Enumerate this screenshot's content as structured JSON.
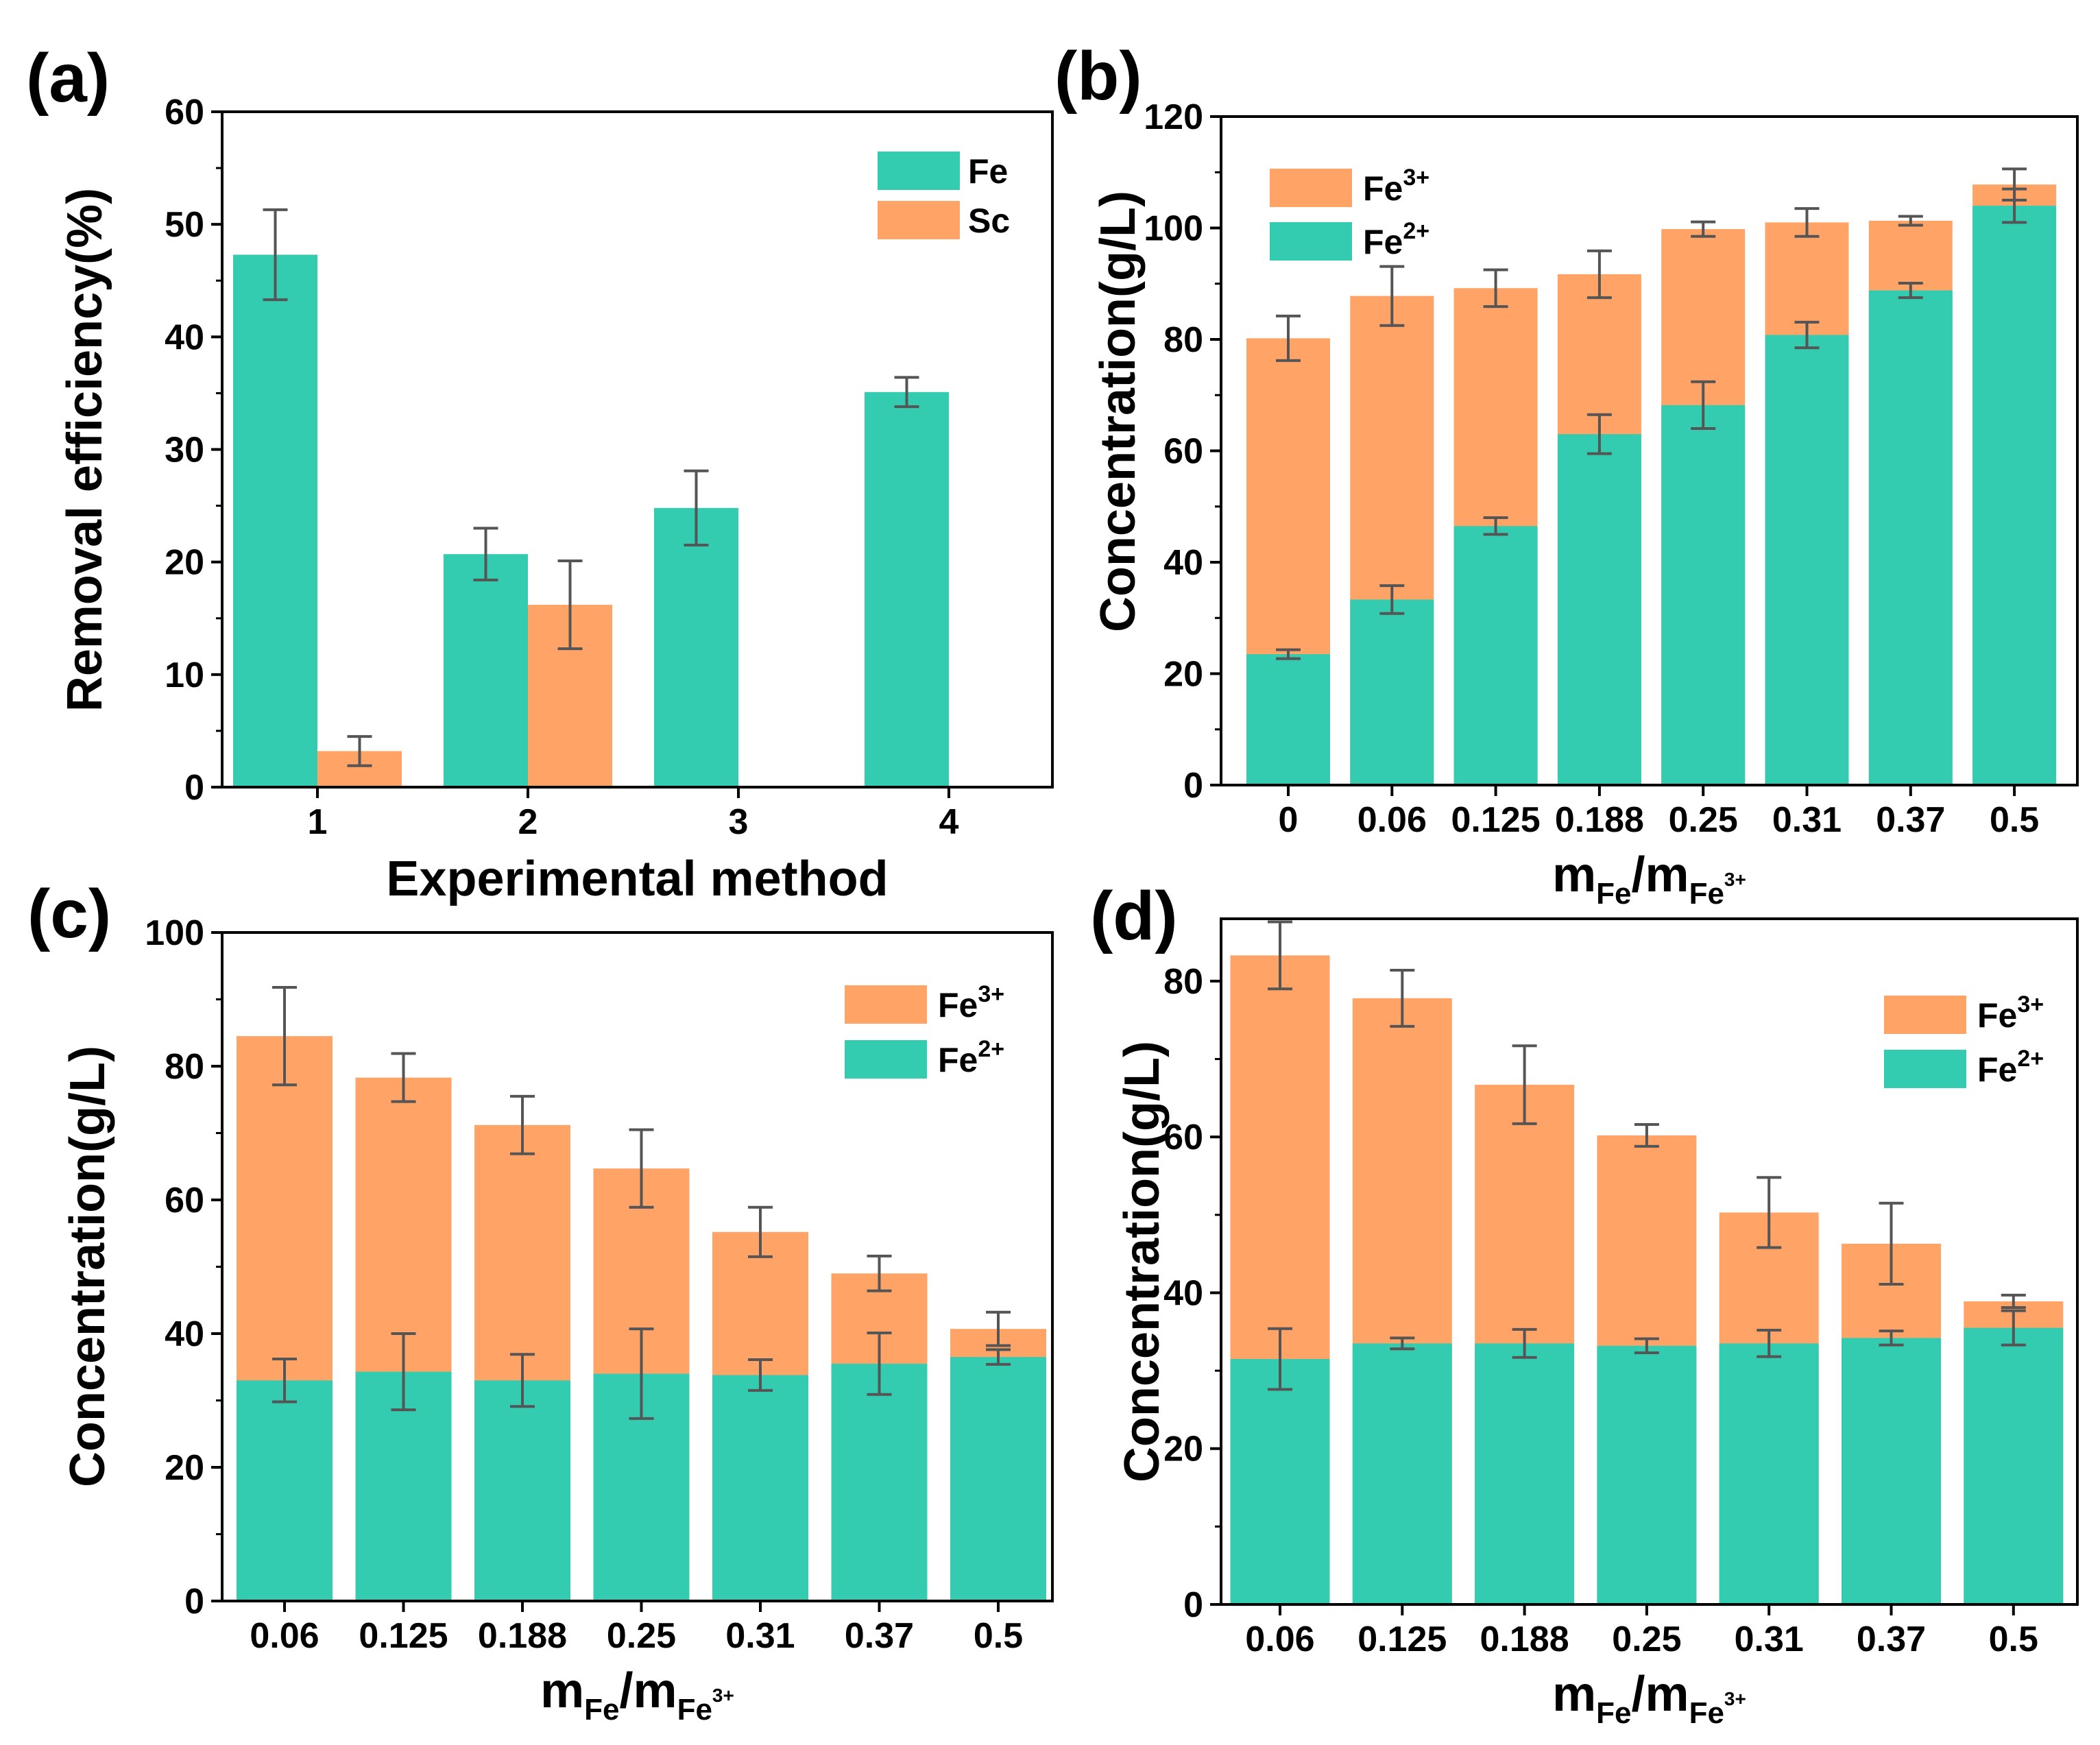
{
  "colors": {
    "fe2": "#33CCB0",
    "fe3": "#FFA366",
    "error": "#555555",
    "axis": "#000000"
  },
  "chart_data": [
    {
      "panel": "(a)",
      "type": "bar",
      "grouped": true,
      "categories": [
        "1",
        "2",
        "3",
        "4"
      ],
      "series": [
        {
          "name": "Fe",
          "values": [
            47.3,
            20.7,
            24.8,
            35.1
          ],
          "errors": [
            4.0,
            2.3,
            3.3,
            1.3
          ]
        },
        {
          "name": "Sc",
          "values": [
            3.2,
            16.2,
            null,
            null
          ],
          "errors": [
            1.3,
            3.9,
            null,
            null
          ]
        }
      ],
      "xlabel": "Experimental method",
      "ylabel": "Removal efficiency(%)",
      "ylim": [
        0,
        60
      ],
      "yticks": [
        0,
        10,
        20,
        30,
        40,
        50,
        60
      ],
      "legend": {
        "position": "top-right",
        "entries": [
          "Fe",
          "Sc"
        ]
      }
    },
    {
      "panel": "(b)",
      "type": "bar",
      "stacked": true,
      "categories": [
        "0",
        "0.06",
        "0.125",
        "0.188",
        "0.25",
        "0.31",
        "0.37",
        "0.5"
      ],
      "series": [
        {
          "name": "Fe2+",
          "values": [
            23.5,
            33.3,
            46.5,
            63.0,
            68.2,
            80.8,
            88.8,
            104.0
          ],
          "errors": [
            0.8,
            2.5,
            1.5,
            3.5,
            4.2,
            2.3,
            1.3,
            3.0
          ]
        },
        {
          "name": "Fe3+",
          "total": [
            80.2,
            87.8,
            89.2,
            91.7,
            99.8,
            101.0,
            101.3,
            107.8
          ],
          "errors": [
            4.0,
            5.3,
            3.3,
            4.2,
            1.3,
            2.5,
            0.8,
            2.8
          ]
        }
      ],
      "xlabel": {
        "main": "m",
        "sub1": "Fe",
        "slash": "/m",
        "sub2": "Fe",
        "sup2": "3+"
      },
      "ylabel": "Concentration(g/L)",
      "ylim": [
        0,
        120
      ],
      "yticks": [
        0,
        20,
        40,
        60,
        80,
        100,
        120
      ],
      "legend": {
        "position": "top-left",
        "entries": [
          {
            "base": "Fe",
            "sup": "3+"
          },
          {
            "base": "Fe",
            "sup": "2+"
          }
        ]
      }
    },
    {
      "panel": "(c)",
      "type": "bar",
      "stacked": true,
      "categories": [
        "0.06",
        "0.125",
        "0.188",
        "0.25",
        "0.31",
        "0.37",
        "0.5"
      ],
      "series": [
        {
          "name": "Fe2+",
          "values": [
            33.0,
            34.3,
            33.0,
            34.0,
            33.8,
            35.5,
            36.5
          ],
          "errors": [
            3.2,
            5.7,
            3.9,
            6.7,
            2.3,
            4.6,
            1.1
          ]
        },
        {
          "name": "Fe3+",
          "total": [
            84.5,
            78.3,
            71.2,
            64.7,
            55.2,
            49.0,
            40.7
          ],
          "errors": [
            7.3,
            3.6,
            4.3,
            5.8,
            3.7,
            2.6,
            2.5
          ]
        }
      ],
      "xlabel": {
        "main": "m",
        "sub1": "Fe",
        "slash": "/m",
        "sub2": "Fe",
        "sup2": "3+"
      },
      "ylabel": "Concentration(g/L)",
      "ylim": [
        0,
        100
      ],
      "yticks": [
        0,
        20,
        40,
        60,
        80,
        100
      ],
      "legend": {
        "position": "top-right",
        "entries": [
          {
            "base": "Fe",
            "sup": "3+"
          },
          {
            "base": "Fe",
            "sup": "2+"
          }
        ]
      }
    },
    {
      "panel": "(d)",
      "type": "bar",
      "stacked": true,
      "categories": [
        "0.06",
        "0.125",
        "0.188",
        "0.25",
        "0.31",
        "0.37",
        "0.5"
      ],
      "series": [
        {
          "name": "Fe2+",
          "values": [
            31.5,
            33.5,
            33.5,
            33.2,
            33.5,
            34.2,
            35.5
          ],
          "errors": [
            3.9,
            0.7,
            1.8,
            0.9,
            1.7,
            0.9,
            2.2
          ]
        },
        {
          "name": "Fe3+",
          "total": [
            83.3,
            77.8,
            66.7,
            60.2,
            50.3,
            46.3,
            38.9
          ],
          "errors": [
            4.3,
            3.6,
            5.0,
            1.4,
            4.5,
            5.2,
            0.8
          ]
        }
      ],
      "xlabel": {
        "main": "m",
        "sub1": "Fe",
        "slash": "/m",
        "sub2": "Fe",
        "sup2": "3+"
      },
      "ylabel": "Concentration(g/L)",
      "ylim": [
        0,
        88
      ],
      "yticks": [
        0,
        20,
        40,
        60,
        80
      ],
      "legend": {
        "position": "top-right",
        "entries": [
          {
            "base": "Fe",
            "sup": "3+"
          },
          {
            "base": "Fe",
            "sup": "2+"
          }
        ]
      }
    }
  ]
}
